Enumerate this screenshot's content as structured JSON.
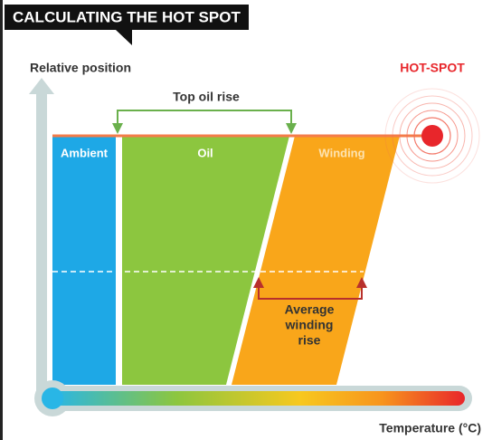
{
  "header": {
    "title": "CALCULATING THE HOT SPOT"
  },
  "axes": {
    "y_label": "Relative position",
    "x_label": "Temperature (°C)"
  },
  "annotations": {
    "top_oil_rise": "Top oil rise",
    "hot_spot": "HOT-SPOT",
    "average_winding_rise": [
      "Average",
      "winding",
      "rise"
    ]
  },
  "regions": {
    "ambient": "Ambient",
    "oil": "Oil",
    "winding": "Winding"
  }
}
